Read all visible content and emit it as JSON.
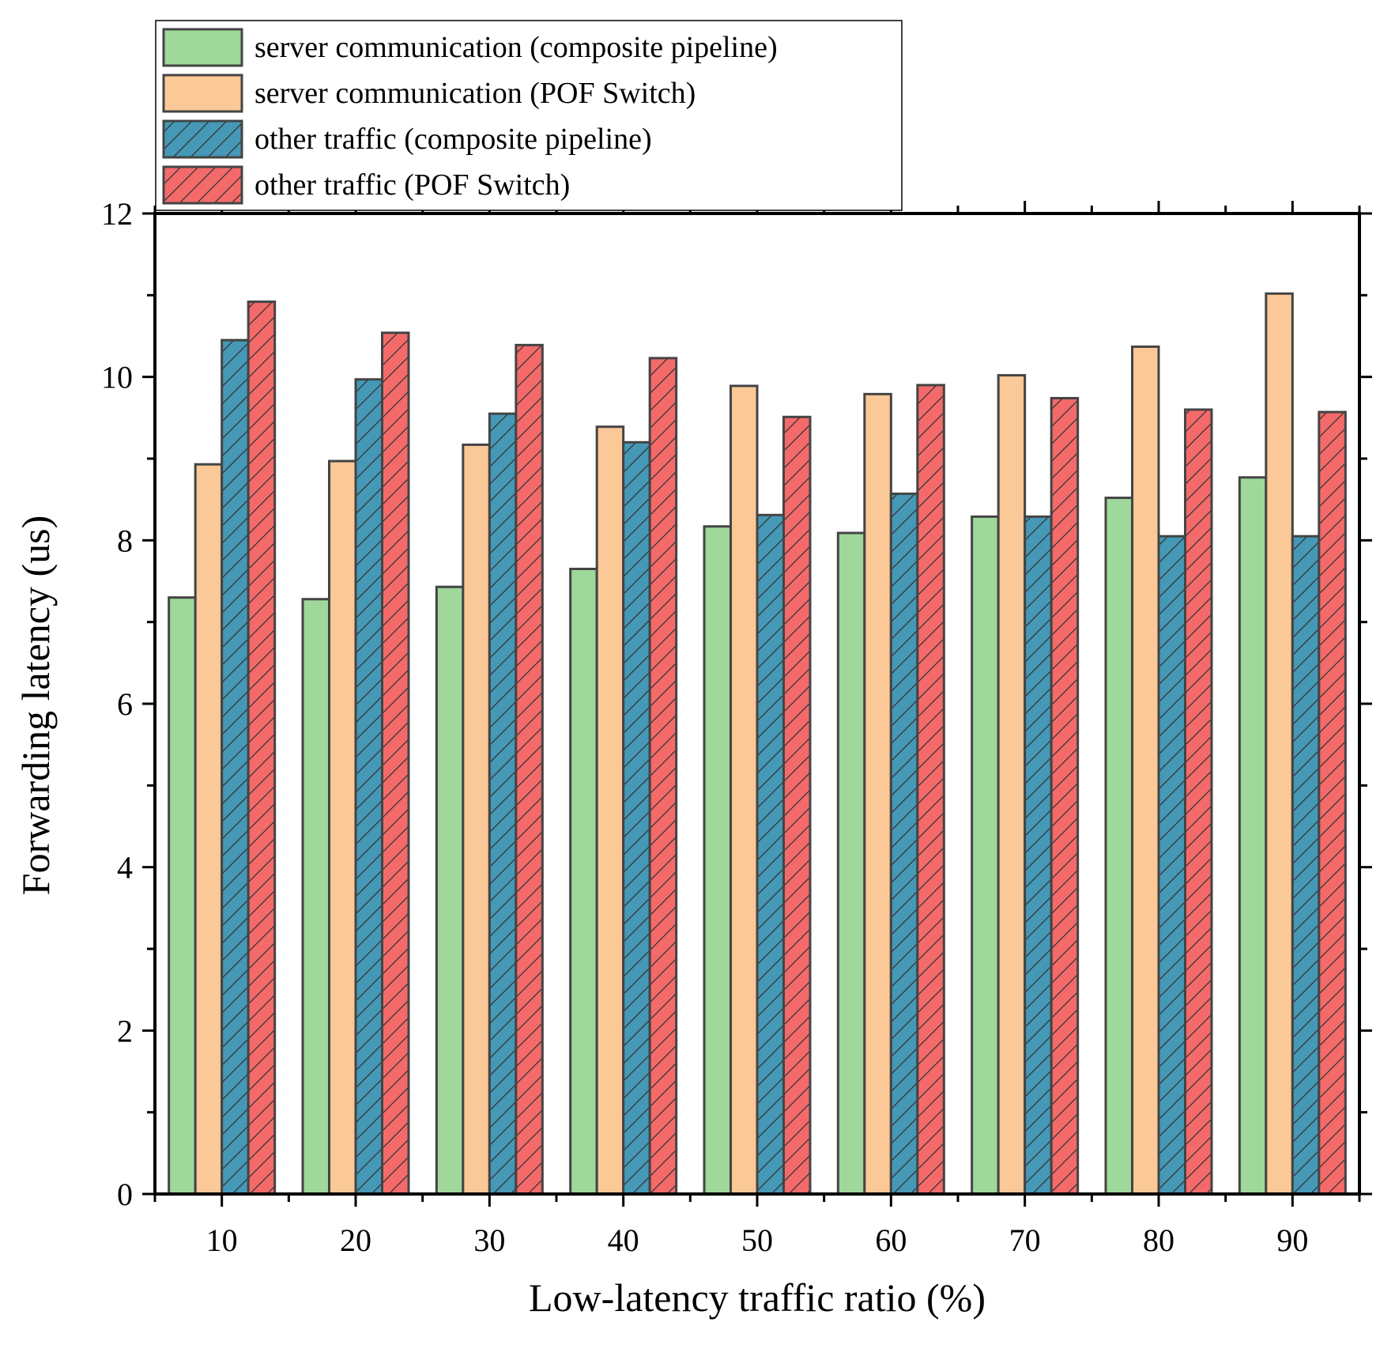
{
  "chart_data": {
    "type": "bar",
    "title": "",
    "xlabel": "Low-latency traffic ratio (%)",
    "ylabel": "Forwarding latency (us)",
    "ylim": [
      0,
      12
    ],
    "yticks": [
      "0",
      "2",
      "4",
      "6",
      "8",
      "10",
      "12"
    ],
    "categories": [
      "10",
      "20",
      "30",
      "40",
      "50",
      "60",
      "70",
      "80",
      "90"
    ],
    "legend_position": "top-left",
    "grid": false,
    "series": [
      {
        "name": "server communication (composite pipeline)",
        "color": "#9fd89a",
        "hatch": false,
        "values": [
          7.3,
          7.28,
          7.43,
          7.65,
          8.17,
          8.09,
          8.29,
          8.52,
          8.77
        ]
      },
      {
        "name": "server communication (POF Switch)",
        "color": "#fbc897",
        "hatch": false,
        "values": [
          8.93,
          8.97,
          9.17,
          9.39,
          9.89,
          9.79,
          10.02,
          10.37,
          11.02
        ]
      },
      {
        "name": "other traffic (composite pipeline)",
        "color": "#4598b6",
        "hatch": true,
        "values": [
          10.45,
          9.97,
          9.55,
          9.2,
          8.31,
          8.57,
          8.29,
          8.05,
          8.05
        ]
      },
      {
        "name": "other traffic (POF Switch)",
        "color": "#f46a6a",
        "hatch": true,
        "values": [
          10.92,
          10.54,
          10.39,
          10.23,
          9.51,
          9.9,
          9.74,
          9.6,
          9.57
        ]
      }
    ]
  }
}
